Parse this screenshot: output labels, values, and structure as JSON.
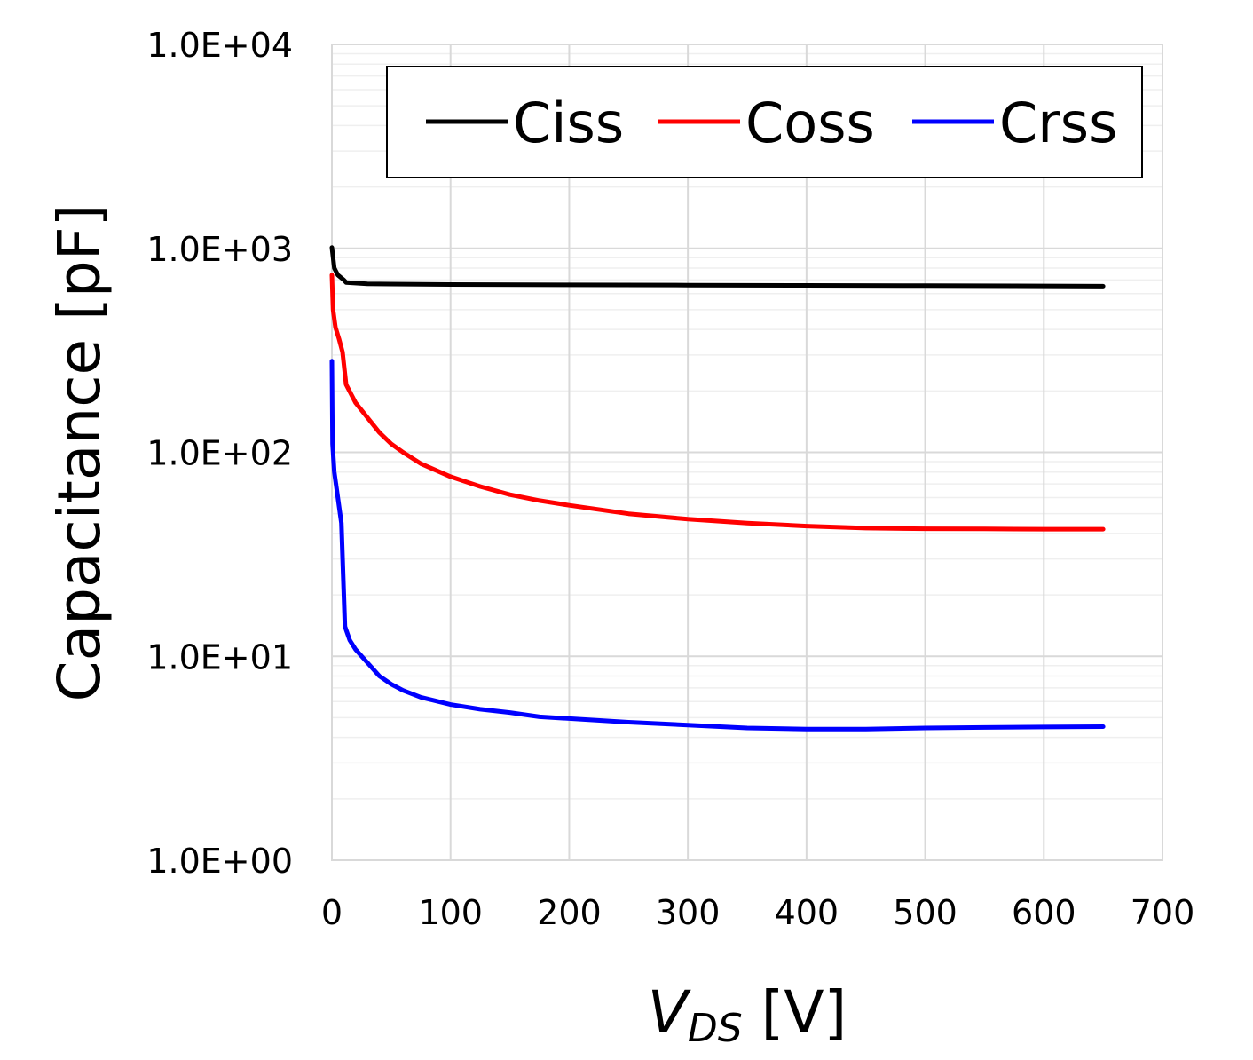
{
  "chart_data": {
    "type": "line",
    "title": "",
    "xlabel": {
      "main": "V",
      "sub": "DS",
      "unit": " [V]"
    },
    "ylabel": "Capacitance [pF]",
    "x_ticks": [
      "0",
      "100",
      "200",
      "300",
      "400",
      "500",
      "600",
      "700"
    ],
    "y_ticks": [
      "1.0E+00",
      "1.0E+01",
      "1.0E+02",
      "1.0E+03",
      "1.0E+04"
    ],
    "xlim": [
      0,
      700
    ],
    "ylim": [
      1,
      10000
    ],
    "yscale": "log",
    "grid": true,
    "legend": "top",
    "series": [
      {
        "name": "Ciss",
        "color": "#000000",
        "points": [
          [
            0,
            1010
          ],
          [
            2,
            800
          ],
          [
            5,
            740
          ],
          [
            10,
            700
          ],
          [
            12,
            680
          ],
          [
            30,
            670
          ],
          [
            50,
            668
          ],
          [
            100,
            665
          ],
          [
            200,
            662
          ],
          [
            300,
            660
          ],
          [
            400,
            658
          ],
          [
            500,
            656
          ],
          [
            600,
            654
          ],
          [
            650,
            652
          ]
        ]
      },
      {
        "name": "Coss",
        "color": "#ff0000",
        "points": [
          [
            0,
            740
          ],
          [
            1,
            500
          ],
          [
            3,
            410
          ],
          [
            6,
            360
          ],
          [
            9,
            310
          ],
          [
            12,
            215
          ],
          [
            20,
            175
          ],
          [
            30,
            148
          ],
          [
            40,
            125
          ],
          [
            50,
            110
          ],
          [
            60,
            100
          ],
          [
            75,
            88
          ],
          [
            100,
            76
          ],
          [
            125,
            68
          ],
          [
            150,
            62
          ],
          [
            175,
            58
          ],
          [
            200,
            55
          ],
          [
            250,
            50
          ],
          [
            300,
            47
          ],
          [
            350,
            45
          ],
          [
            400,
            43.5
          ],
          [
            450,
            42.5
          ],
          [
            500,
            42.2
          ],
          [
            550,
            42.1
          ],
          [
            600,
            42
          ],
          [
            650,
            42
          ]
        ]
      },
      {
        "name": "Crss",
        "color": "#0000ff",
        "points": [
          [
            0,
            280
          ],
          [
            0.5,
            110
          ],
          [
            2,
            80
          ],
          [
            5,
            60
          ],
          [
            8,
            45
          ],
          [
            11,
            14
          ],
          [
            15,
            12
          ],
          [
            20,
            10.8
          ],
          [
            30,
            9.3
          ],
          [
            40,
            8
          ],
          [
            50,
            7.3
          ],
          [
            60,
            6.8
          ],
          [
            75,
            6.3
          ],
          [
            100,
            5.8
          ],
          [
            125,
            5.5
          ],
          [
            150,
            5.3
          ],
          [
            175,
            5.05
          ],
          [
            200,
            4.95
          ],
          [
            250,
            4.75
          ],
          [
            300,
            4.6
          ],
          [
            350,
            4.45
          ],
          [
            400,
            4.4
          ],
          [
            450,
            4.4
          ],
          [
            500,
            4.45
          ],
          [
            550,
            4.48
          ],
          [
            600,
            4.5
          ],
          [
            650,
            4.52
          ]
        ]
      }
    ]
  }
}
